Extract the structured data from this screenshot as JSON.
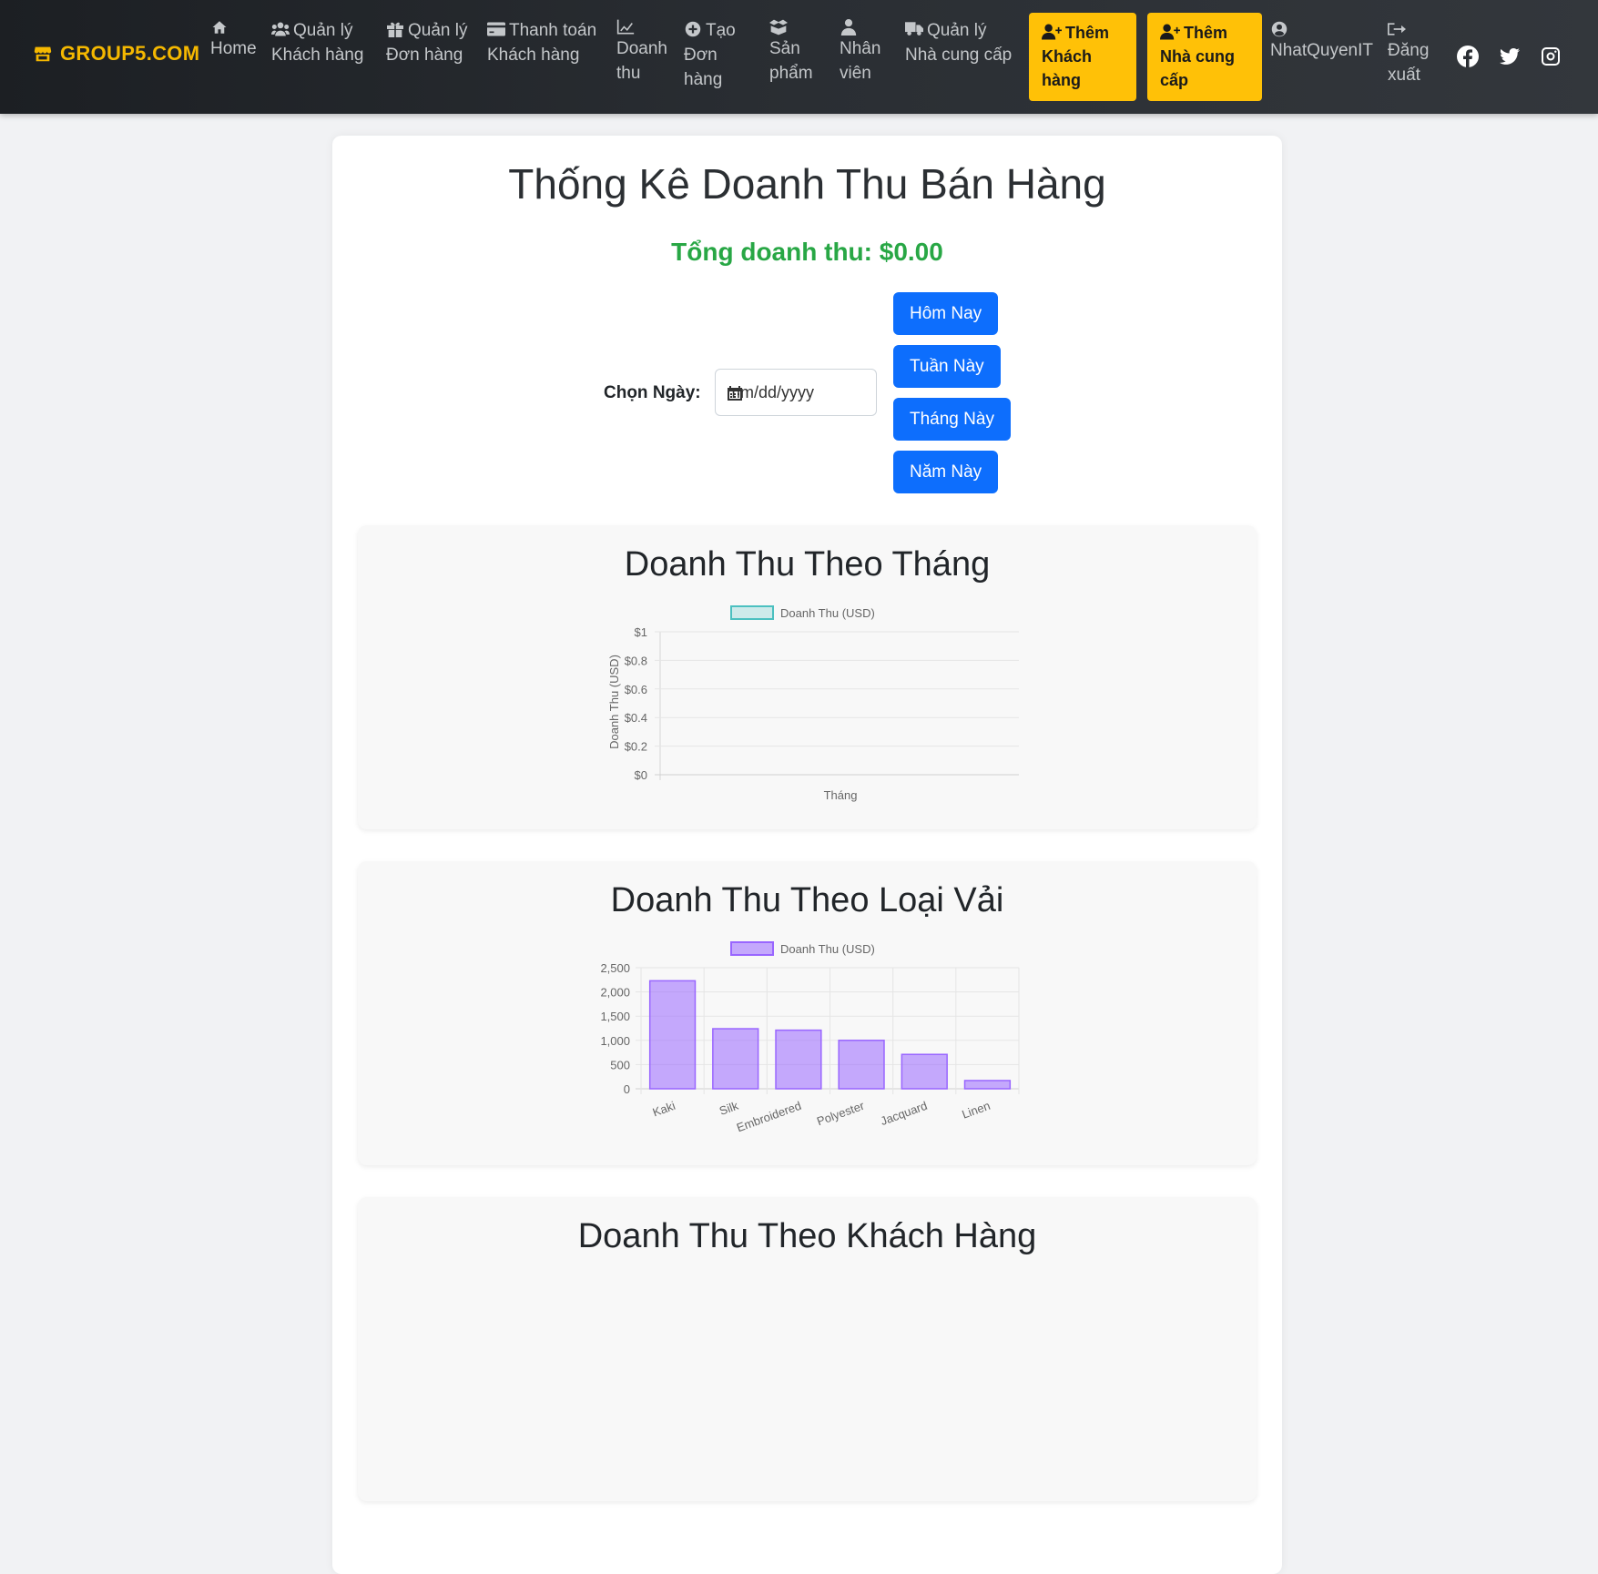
{
  "brand": {
    "label": "GROUP5.COM"
  },
  "nav": {
    "home": "Home",
    "customers": [
      "Quản lý",
      "Khách hàng"
    ],
    "orders": [
      "Quản lý",
      "Đơn hàng"
    ],
    "payments": [
      "Thanh toán",
      "Khách hàng"
    ],
    "revenue": [
      "Doanh",
      "thu"
    ],
    "create_order": [
      "Tạo",
      "Đơn",
      "hàng"
    ],
    "products": [
      "Sản",
      "phẩm"
    ],
    "staff": [
      "Nhân",
      "viên"
    ],
    "suppliers": [
      "Quản lý",
      "Nhà cung cấp"
    ],
    "add_customer": [
      "Thêm",
      "Khách",
      "hàng"
    ],
    "add_supplier": [
      "Thêm",
      "Nhà cung",
      "cấp"
    ],
    "user": "NhatQuyenIT",
    "logout": [
      "Đăng",
      "xuất"
    ]
  },
  "page": {
    "title": "Thống Kê Doanh Thu Bán Hàng",
    "total": "Tổng doanh thu: $0.00",
    "date_label": "Chọn Ngày:",
    "date_placeholder": "mm/dd/yyyy",
    "buttons": {
      "today": "Hôm Nay",
      "week": "Tuần Này",
      "month": "Tháng Này",
      "year": "Năm Này"
    }
  },
  "colors": {
    "accent": "#ffc107",
    "primary": "#0d6efd",
    "success": "#28a745",
    "line_series": "#4bc0c0",
    "bar_series": "#9966ff"
  },
  "chart_data": [
    {
      "type": "line",
      "title": "Doanh Thu Theo Tháng",
      "legend": "Doanh Thu (USD)",
      "xlabel": "Tháng",
      "ylabel": "Doanh Thu (USD)",
      "yticks": [
        "$0",
        "$0.2",
        "$0.4",
        "$0.6",
        "$0.8",
        "$1"
      ],
      "ylim": [
        0,
        1
      ],
      "categories": [],
      "values": []
    },
    {
      "type": "bar",
      "title": "Doanh Thu Theo Loại Vải",
      "legend": "Doanh Thu (USD)",
      "yticks": [
        "0",
        "500",
        "1,000",
        "1,500",
        "2,000",
        "2,500"
      ],
      "ylim": [
        0,
        2500
      ],
      "categories": [
        "Kaki",
        "Silk",
        "Embroidered",
        "Polyester",
        "Jacquard",
        "Linen"
      ],
      "values": [
        2230,
        1240,
        1210,
        1000,
        710,
        170
      ]
    },
    {
      "type": "pie",
      "title": "Doanh Thu Theo Khách Hàng",
      "categories": [],
      "values": []
    }
  ]
}
